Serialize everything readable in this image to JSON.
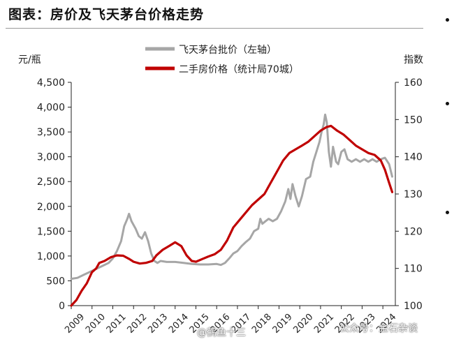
{
  "title": "图表：房价及飞天茅台价格走势",
  "watermarks": {
    "left": "@鹤鱼十三",
    "right": "公众号：金石杂谈"
  },
  "chart_data": {
    "type": "line",
    "left_axis": {
      "label": "元/瓶",
      "range": [
        0,
        4500
      ],
      "ticks": [
        "0",
        "500",
        "1,000",
        "1,500",
        "2,000",
        "2,500",
        "3,000",
        "3,500",
        "4,000",
        "4,500"
      ]
    },
    "right_axis": {
      "label": "指数",
      "range": [
        100,
        160
      ],
      "ticks": [
        "100",
        "110",
        "120",
        "130",
        "140",
        "150",
        "160"
      ]
    },
    "x_axis": {
      "range": [
        2009,
        2024.6
      ],
      "ticks": [
        "2009",
        "2010",
        "2011",
        "2012",
        "2013",
        "2014",
        "2015",
        "2016",
        "2017",
        "2018",
        "2019",
        "2020",
        "2021",
        "2022",
        "2023",
        "2024"
      ]
    },
    "grid": false,
    "legend_position": "top",
    "series": [
      {
        "name": "飞天茅台批价（左轴）",
        "axis": "left",
        "color": "#a6a6a6",
        "points": [
          [
            2009.0,
            540
          ],
          [
            2009.3,
            560
          ],
          [
            2009.6,
            620
          ],
          [
            2009.9,
            680
          ],
          [
            2010.2,
            740
          ],
          [
            2010.5,
            800
          ],
          [
            2010.8,
            860
          ],
          [
            2011.0,
            950
          ],
          [
            2011.2,
            1100
          ],
          [
            2011.4,
            1300
          ],
          [
            2011.55,
            1600
          ],
          [
            2011.7,
            1750
          ],
          [
            2011.78,
            1850
          ],
          [
            2011.9,
            1700
          ],
          [
            2012.1,
            1550
          ],
          [
            2012.25,
            1400
          ],
          [
            2012.4,
            1350
          ],
          [
            2012.55,
            1480
          ],
          [
            2012.7,
            1300
          ],
          [
            2012.85,
            1050
          ],
          [
            2013.0,
            900
          ],
          [
            2013.15,
            860
          ],
          [
            2013.3,
            900
          ],
          [
            2013.6,
            880
          ],
          [
            2014.0,
            880
          ],
          [
            2014.4,
            860
          ],
          [
            2014.8,
            840
          ],
          [
            2015.2,
            830
          ],
          [
            2015.6,
            830
          ],
          [
            2016.0,
            840
          ],
          [
            2016.2,
            820
          ],
          [
            2016.4,
            860
          ],
          [
            2016.6,
            950
          ],
          [
            2016.8,
            1050
          ],
          [
            2017.0,
            1100
          ],
          [
            2017.2,
            1200
          ],
          [
            2017.4,
            1280
          ],
          [
            2017.6,
            1350
          ],
          [
            2017.8,
            1500
          ],
          [
            2018.0,
            1550
          ],
          [
            2018.1,
            1750
          ],
          [
            2018.2,
            1650
          ],
          [
            2018.35,
            1700
          ],
          [
            2018.5,
            1750
          ],
          [
            2018.7,
            1700
          ],
          [
            2018.9,
            1750
          ],
          [
            2019.1,
            1900
          ],
          [
            2019.3,
            2100
          ],
          [
            2019.45,
            2350
          ],
          [
            2019.55,
            2150
          ],
          [
            2019.65,
            2450
          ],
          [
            2019.8,
            2200
          ],
          [
            2019.95,
            2000
          ],
          [
            2020.1,
            2200
          ],
          [
            2020.3,
            2550
          ],
          [
            2020.5,
            2600
          ],
          [
            2020.65,
            2900
          ],
          [
            2020.8,
            3100
          ],
          [
            2020.95,
            3300
          ],
          [
            2021.05,
            3500
          ],
          [
            2021.15,
            3650
          ],
          [
            2021.22,
            3850
          ],
          [
            2021.3,
            3700
          ],
          [
            2021.4,
            3100
          ],
          [
            2021.5,
            2800
          ],
          [
            2021.6,
            3200
          ],
          [
            2021.75,
            2900
          ],
          [
            2021.85,
            2850
          ],
          [
            2022.0,
            3100
          ],
          [
            2022.15,
            3150
          ],
          [
            2022.3,
            2950
          ],
          [
            2022.5,
            2900
          ],
          [
            2022.7,
            2950
          ],
          [
            2022.9,
            2900
          ],
          [
            2023.1,
            2950
          ],
          [
            2023.3,
            2900
          ],
          [
            2023.5,
            2950
          ],
          [
            2023.7,
            2900
          ],
          [
            2023.9,
            2950
          ],
          [
            2024.1,
            2980
          ],
          [
            2024.3,
            2850
          ],
          [
            2024.45,
            2600
          ]
        ]
      },
      {
        "name": "二手房价格（统计局70城）",
        "axis": "right",
        "color": "#c00000",
        "points": [
          [
            2009.0,
            100
          ],
          [
            2009.25,
            101.5
          ],
          [
            2009.5,
            104
          ],
          [
            2009.75,
            106
          ],
          [
            2010.0,
            109
          ],
          [
            2010.2,
            110
          ],
          [
            2010.35,
            111.5
          ],
          [
            2010.6,
            112
          ],
          [
            2010.9,
            113
          ],
          [
            2011.2,
            113.5
          ],
          [
            2011.5,
            113.4
          ],
          [
            2011.8,
            112.5
          ],
          [
            2012.0,
            111.8
          ],
          [
            2012.3,
            111.3
          ],
          [
            2012.6,
            111.5
          ],
          [
            2012.9,
            112
          ],
          [
            2013.1,
            113.5
          ],
          [
            2013.4,
            115
          ],
          [
            2013.7,
            116
          ],
          [
            2014.0,
            117
          ],
          [
            2014.3,
            116
          ],
          [
            2014.55,
            113.5
          ],
          [
            2014.8,
            112
          ],
          [
            2015.0,
            111.8
          ],
          [
            2015.3,
            112.5
          ],
          [
            2015.6,
            113.2
          ],
          [
            2015.9,
            113.8
          ],
          [
            2016.2,
            115
          ],
          [
            2016.5,
            117.5
          ],
          [
            2016.8,
            121
          ],
          [
            2017.1,
            123
          ],
          [
            2017.4,
            125
          ],
          [
            2017.7,
            127
          ],
          [
            2018.0,
            128.5
          ],
          [
            2018.3,
            130
          ],
          [
            2018.6,
            133
          ],
          [
            2018.9,
            136
          ],
          [
            2019.2,
            139
          ],
          [
            2019.5,
            141
          ],
          [
            2019.8,
            142
          ],
          [
            2020.1,
            143
          ],
          [
            2020.4,
            144
          ],
          [
            2020.7,
            145.5
          ],
          [
            2021.0,
            147
          ],
          [
            2021.3,
            148
          ],
          [
            2021.5,
            148.3
          ],
          [
            2021.8,
            147
          ],
          [
            2022.1,
            146
          ],
          [
            2022.4,
            144.5
          ],
          [
            2022.7,
            143
          ],
          [
            2023.0,
            142
          ],
          [
            2023.3,
            141
          ],
          [
            2023.6,
            140.5
          ],
          [
            2023.9,
            139
          ],
          [
            2024.1,
            136.5
          ],
          [
            2024.3,
            133
          ],
          [
            2024.45,
            130.5
          ]
        ]
      }
    ]
  }
}
